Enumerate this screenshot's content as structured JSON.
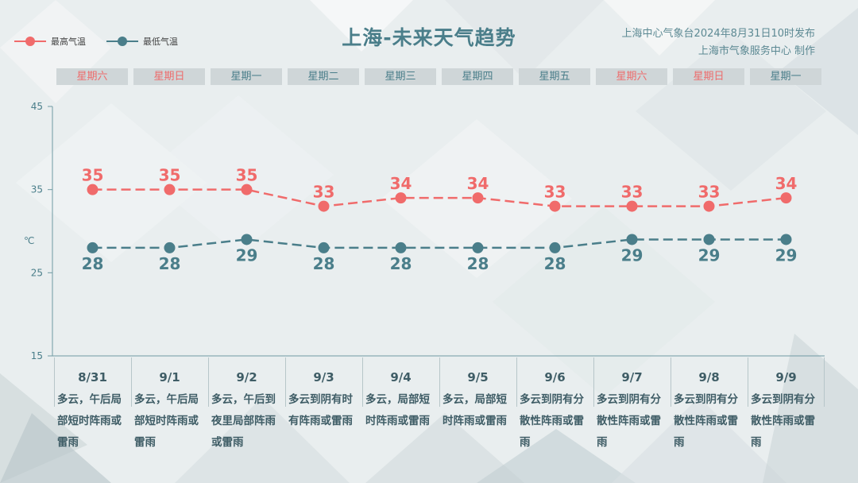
{
  "title": "上海-未来天气趋势",
  "source": {
    "line1": "上海中心气象台2024年8月31日10时发布",
    "line2": "上海市气象服务中心 制作"
  },
  "legend": {
    "high": "最高气温",
    "low": "最低气温"
  },
  "colors": {
    "high": "#f06b6b",
    "low": "#4a7e8a",
    "weekend_label": "#ee6b6b",
    "weekday_label": "#4a7e8a"
  },
  "weekdays": [
    {
      "label": "星期六",
      "weekend": true
    },
    {
      "label": "星期日",
      "weekend": true
    },
    {
      "label": "星期一",
      "weekend": false
    },
    {
      "label": "星期二",
      "weekend": false
    },
    {
      "label": "星期三",
      "weekend": false
    },
    {
      "label": "星期四",
      "weekend": false
    },
    {
      "label": "星期五",
      "weekend": false
    },
    {
      "label": "星期六",
      "weekend": true
    },
    {
      "label": "星期日",
      "weekend": true
    },
    {
      "label": "星期一",
      "weekend": false
    }
  ],
  "days": [
    {
      "date": "8/31",
      "desc": "多云，午后局部短时阵雨或雷雨"
    },
    {
      "date": "9/1",
      "desc": "多云，午后局部短时阵雨或雷雨"
    },
    {
      "date": "9/2",
      "desc": "多云，午后到夜里局部阵雨或雷雨"
    },
    {
      "date": "9/3",
      "desc": "多云到阴有时有阵雨或雷雨"
    },
    {
      "date": "9/4",
      "desc": "多云，局部短时阵雨或雷雨"
    },
    {
      "date": "9/5",
      "desc": "多云，局部短时阵雨或雷雨"
    },
    {
      "date": "9/6",
      "desc": "多云到阴有分散性阵雨或雷雨"
    },
    {
      "date": "9/7",
      "desc": "多云到阴有分散性阵雨或雷雨"
    },
    {
      "date": "9/8",
      "desc": "多云到阴有分散性阵雨或雷雨"
    },
    {
      "date": "9/9",
      "desc": "多云到阴有分散性阵雨或雷雨"
    }
  ],
  "chart_data": {
    "type": "line",
    "title": "上海-未来天气趋势",
    "ylabel": "℃",
    "x": [
      "8/31",
      "9/1",
      "9/2",
      "9/3",
      "9/4",
      "9/5",
      "9/6",
      "9/7",
      "9/8",
      "9/9"
    ],
    "y_ticks": [
      15,
      25,
      35,
      45
    ],
    "ylim": [
      15,
      45
    ],
    "grid": false,
    "legend_position": "top-left",
    "series": [
      {
        "name": "最高气温",
        "values": [
          35,
          35,
          35,
          33,
          34,
          34,
          33,
          33,
          33,
          34
        ],
        "color": "#f06b6b",
        "dashed": true
      },
      {
        "name": "最低气温",
        "values": [
          28,
          28,
          29,
          28,
          28,
          28,
          28,
          29,
          29,
          29
        ],
        "color": "#4a7e8a",
        "dashed": true
      }
    ]
  }
}
